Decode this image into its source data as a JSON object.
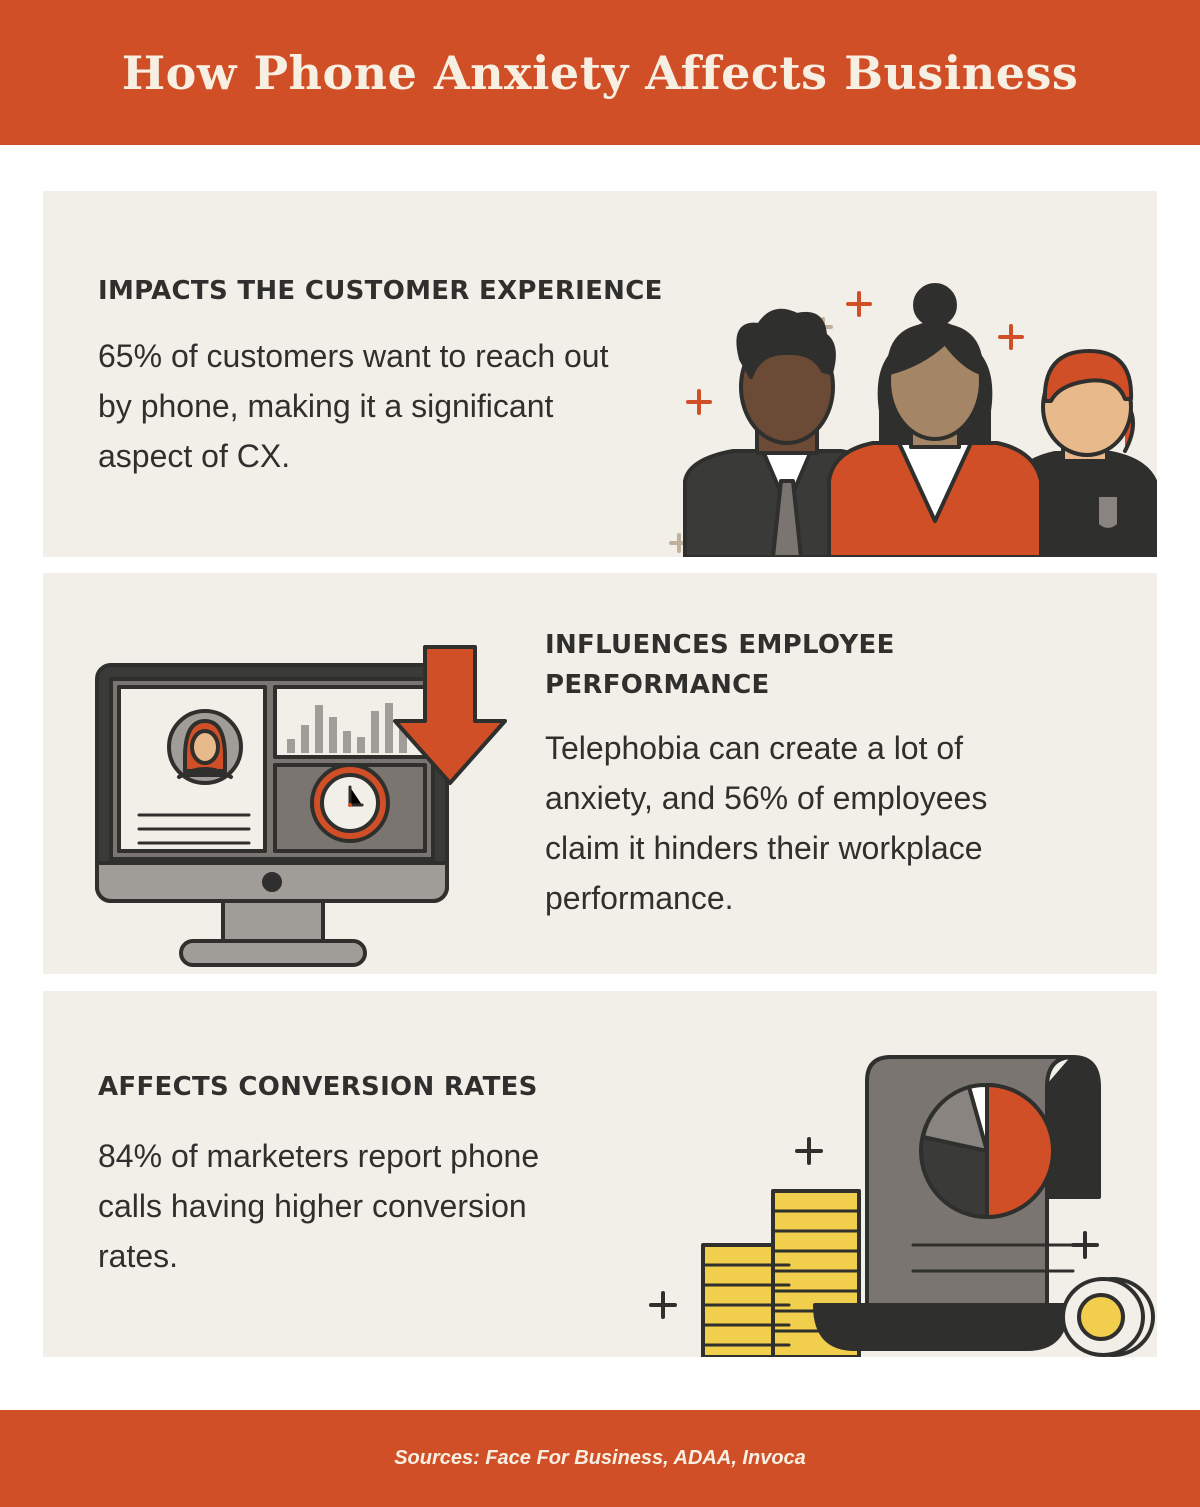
{
  "title": "How Phone Anxiety Affects Business",
  "sections": [
    {
      "heading": "IMPACTS THE CUSTOMER EXPERIENCE",
      "body": "65% of customers want to reach out by phone, making it a significant aspect of CX.",
      "icon": "people-group-icon"
    },
    {
      "heading": "INFLUENCES EMPLOYEE PERFORMANCE",
      "body": "Telephobia can create a lot of anxiety, and 56% of employees claim it hinders their workplace performance.",
      "icon": "computer-monitor-icon"
    },
    {
      "heading": "AFFECTS CONVERSION RATES",
      "body": "84% of marketers report phone calls having higher conversion rates.",
      "icon": "report-scroll-coins-icon"
    }
  ],
  "sources": "Sources: Face For Business, ADAA, Invoca",
  "colors": {
    "accent": "#d14f26",
    "panel": "#f2efe8",
    "text": "#2f2f2d",
    "cream": "#f8efe3",
    "coin": "#f1cf4c"
  }
}
